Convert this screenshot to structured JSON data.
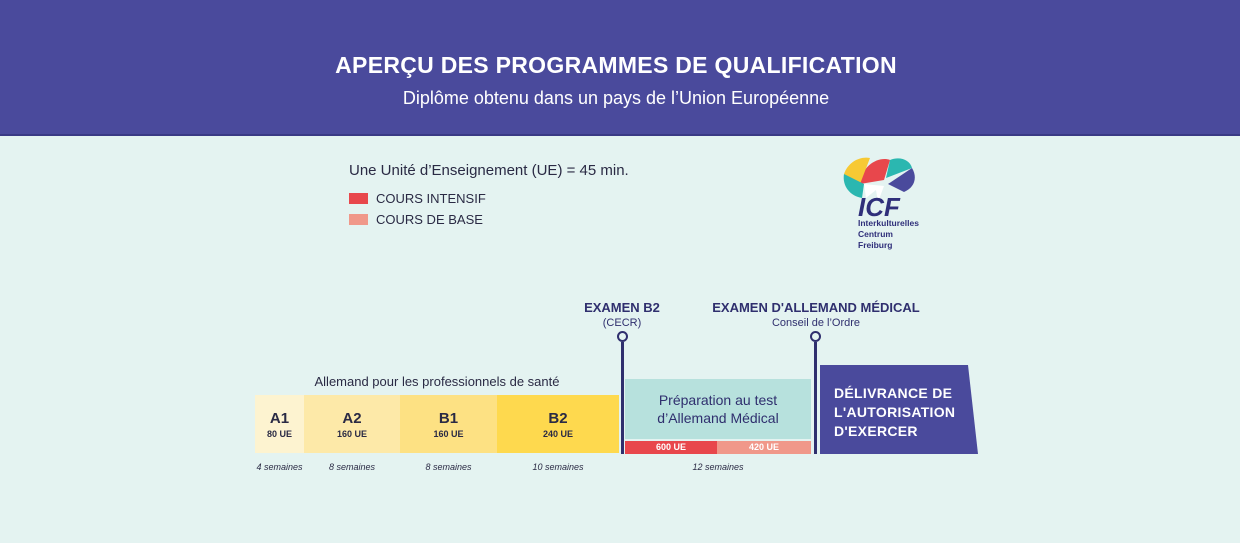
{
  "header": {
    "title": "APERÇU DES PROGRAMMES DE QUALIFICATION",
    "subtitle": "Diplôme obtenu dans un pays de l’Union Européenne"
  },
  "legend": {
    "unit_note": "Une Unité d’Enseignement (UE) = 45 min.",
    "items": [
      {
        "label": "COURS INTENSIF",
        "color": "#e8474c"
      },
      {
        "label": "COURS DE BASE",
        "color": "#f0988a"
      }
    ]
  },
  "logo": {
    "name": "ICF",
    "lines": [
      "Interkulturelles",
      "Centrum",
      "Freiburg"
    ]
  },
  "exams": [
    {
      "title": "EXAMEN B2",
      "subtitle": "(CECR)"
    },
    {
      "title": "EXAMEN D'ALLEMAND MÉDICAL",
      "subtitle": "Conseil de l’Ordre"
    }
  ],
  "german_course": {
    "label": "Allemand pour les professionnels de santé",
    "levels": [
      {
        "name": "A1",
        "ue": "80 UE",
        "weeks": "4 semaines",
        "color": "#fdf3d0"
      },
      {
        "name": "A2",
        "ue": "160 UE",
        "weeks": "8 semaines",
        "color": "#fde9a8"
      },
      {
        "name": "B1",
        "ue": "160 UE",
        "weeks": "8 semaines",
        "color": "#fde183"
      },
      {
        "name": "B2",
        "ue": "240 UE",
        "weeks": "10 semaines",
        "color": "#fed94e"
      }
    ]
  },
  "preparation": {
    "lines": [
      "Préparation au test",
      "d’Allemand Médical"
    ],
    "intensive_ue": "600 UE",
    "base_ue": "420 UE",
    "weeks": "12 semaines"
  },
  "delivery": {
    "lines": [
      "DÉLIVRANCE DE",
      "L'AUTORISATION",
      "D'EXERCER"
    ],
    "color": "#4a4a9c"
  }
}
